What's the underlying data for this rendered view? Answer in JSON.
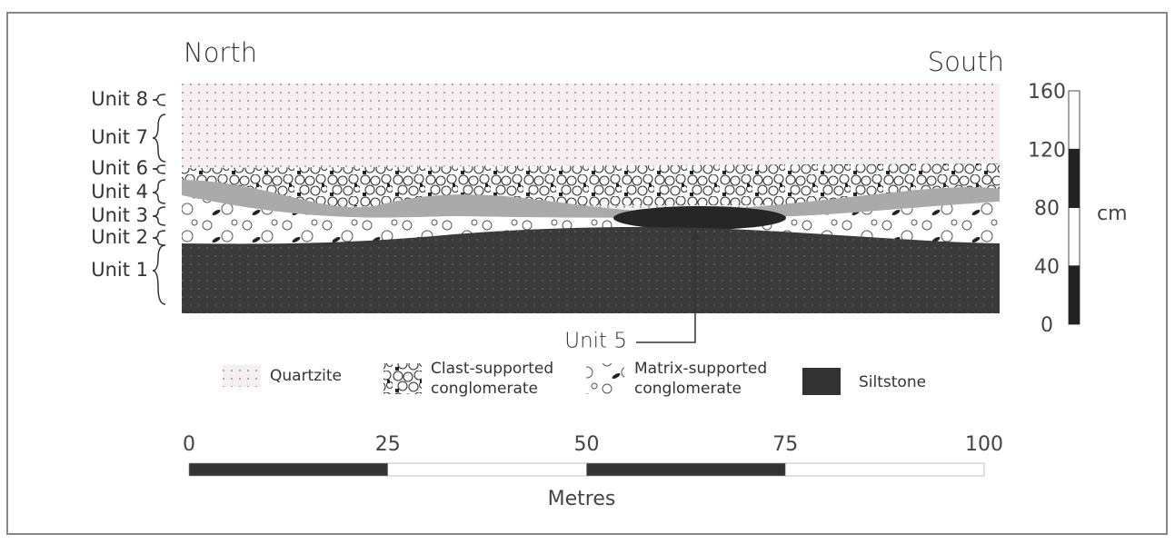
{
  "header": {
    "left": "North",
    "right": "South"
  },
  "units": [
    "Unit 8",
    "Unit 7",
    "Unit 6",
    "Unit 4",
    "Unit 3",
    "Unit 2",
    "Unit 1"
  ],
  "lens_label": "Unit 5",
  "legend": [
    {
      "lines": [
        "Quartzite"
      ]
    },
    {
      "lines": [
        "Clast-supported",
        "conglomerate"
      ]
    },
    {
      "lines": [
        "Matrix-supported",
        "conglomerate"
      ]
    },
    {
      "lines": [
        "Siltstone"
      ]
    }
  ],
  "thickness_scale": {
    "ticks": [
      0,
      40,
      80,
      120,
      160
    ],
    "unit": "cm"
  },
  "distance_scale": {
    "ticks": [
      0,
      25,
      50,
      75,
      100
    ],
    "title": "Metres"
  }
}
